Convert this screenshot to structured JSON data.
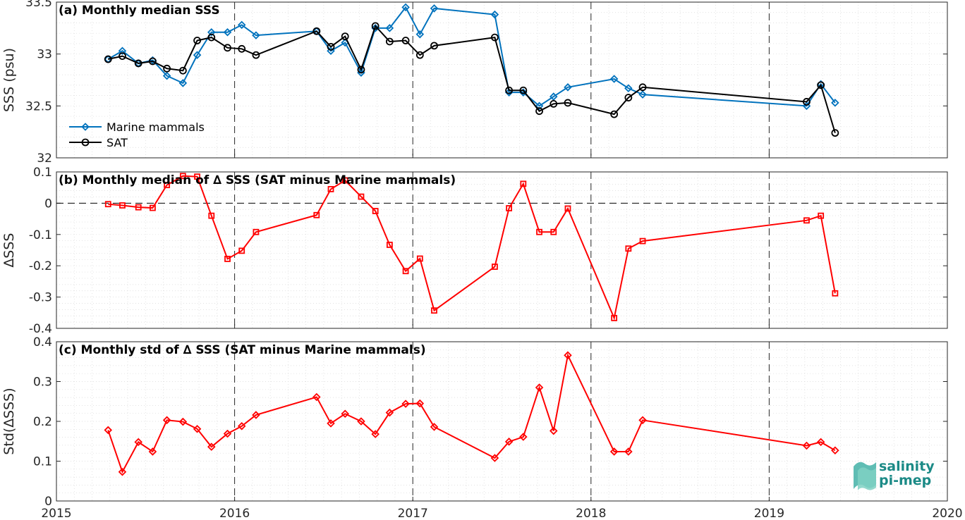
{
  "colors": {
    "marine": "#0072BD",
    "sat": "#000000",
    "diff": "#FF0000",
    "logo": "#1b8a86"
  },
  "logo": {
    "line1": "salinity",
    "line2": "pi-mep"
  },
  "x_axis": {
    "range": [
      2015,
      2020
    ],
    "ticks": [
      "2015",
      "2016",
      "2017",
      "2018",
      "2019",
      "2020"
    ]
  },
  "chart_data": [
    {
      "type": "line",
      "title": "(a) Monthly median SSS",
      "ylabel": "SSS (psu)",
      "ylim": [
        32,
        33.5
      ],
      "yticks": [
        "32",
        "32.5",
        "33",
        "33.5"
      ],
      "legend": "bottom-left",
      "x": [
        2015.29,
        2015.37,
        2015.46,
        2015.54,
        2015.62,
        2015.71,
        2015.79,
        2015.87,
        2015.96,
        2016.04,
        2016.12,
        2016.46,
        2016.54,
        2016.62,
        2016.71,
        2016.79,
        2016.87,
        2016.96,
        2017.04,
        2017.12,
        2017.46,
        2017.54,
        2017.62,
        2017.71,
        2017.79,
        2017.87,
        2018.13,
        2018.21,
        2018.29,
        2019.21,
        2019.29,
        2019.37
      ],
      "series": [
        {
          "name": "Marine mammals",
          "marker": "diamond",
          "values": [
            32.95,
            33.03,
            32.91,
            32.94,
            32.79,
            32.72,
            32.99,
            33.21,
            33.21,
            33.28,
            33.18,
            33.22,
            33.03,
            33.11,
            32.82,
            33.25,
            33.25,
            33.45,
            33.19,
            33.44,
            33.38,
            32.63,
            32.63,
            32.5,
            32.59,
            32.68,
            32.76,
            32.67,
            32.61,
            32.5,
            32.71,
            32.53
          ]
        },
        {
          "name": "SAT",
          "marker": "circle",
          "values": [
            32.95,
            32.98,
            32.91,
            32.93,
            32.86,
            32.84,
            33.13,
            33.16,
            33.06,
            33.05,
            32.99,
            33.22,
            33.07,
            33.17,
            32.85,
            33.27,
            33.12,
            33.13,
            32.99,
            33.08,
            33.16,
            32.65,
            32.65,
            32.45,
            32.52,
            32.53,
            32.42,
            32.58,
            32.68,
            32.54,
            32.7,
            32.24
          ]
        }
      ]
    },
    {
      "type": "line",
      "title": "(b) Monthly median of ∆ SSS (SAT minus Marine mammals)",
      "ylabel": "∆SSS",
      "ylim": [
        -0.4,
        0.1
      ],
      "yticks": [
        "-0.4",
        "-0.3",
        "-0.2",
        "-0.1",
        "0",
        "0.1"
      ],
      "reference_line": 0,
      "x": [
        2015.29,
        2015.37,
        2015.46,
        2015.54,
        2015.62,
        2015.71,
        2015.79,
        2015.87,
        2015.96,
        2016.04,
        2016.12,
        2016.46,
        2016.54,
        2016.62,
        2016.71,
        2016.79,
        2016.87,
        2016.96,
        2017.04,
        2017.12,
        2017.46,
        2017.54,
        2017.62,
        2017.71,
        2017.79,
        2017.87,
        2018.13,
        2018.21,
        2018.29,
        2019.21,
        2019.29,
        2019.37
      ],
      "series": [
        {
          "marker": "square",
          "values": [
            -0.003,
            -0.007,
            -0.013,
            -0.015,
            0.058,
            0.087,
            0.085,
            -0.04,
            -0.178,
            -0.152,
            -0.092,
            -0.038,
            0.045,
            0.073,
            0.021,
            -0.025,
            -0.133,
            -0.217,
            -0.177,
            -0.343,
            -0.203,
            -0.016,
            0.062,
            -0.092,
            -0.092,
            -0.017,
            -0.367,
            -0.145,
            -0.121,
            -0.055,
            -0.04,
            -0.288
          ]
        }
      ]
    },
    {
      "type": "line",
      "title": "(c) Monthly std of ∆ SSS (SAT minus Marine mammals)",
      "ylabel": "Std(∆SSS)",
      "ylim": [
        0,
        0.4
      ],
      "yticks": [
        "0",
        "0.1",
        "0.2",
        "0.3",
        "0.4"
      ],
      "x": [
        2015.29,
        2015.37,
        2015.46,
        2015.54,
        2015.62,
        2015.71,
        2015.79,
        2015.87,
        2015.96,
        2016.04,
        2016.12,
        2016.46,
        2016.54,
        2016.62,
        2016.71,
        2016.79,
        2016.87,
        2016.96,
        2017.04,
        2017.12,
        2017.46,
        2017.54,
        2017.62,
        2017.71,
        2017.79,
        2017.87,
        2018.13,
        2018.21,
        2018.29,
        2019.21,
        2019.29,
        2019.37
      ],
      "series": [
        {
          "marker": "diamond",
          "values": [
            0.178,
            0.073,
            0.148,
            0.124,
            0.203,
            0.199,
            0.181,
            0.136,
            0.169,
            0.188,
            0.216,
            0.261,
            0.195,
            0.219,
            0.2,
            0.168,
            0.222,
            0.244,
            0.245,
            0.186,
            0.108,
            0.149,
            0.161,
            0.285,
            0.176,
            0.366,
            0.124,
            0.124,
            0.203,
            0.139,
            0.148,
            0.127
          ]
        }
      ]
    }
  ]
}
